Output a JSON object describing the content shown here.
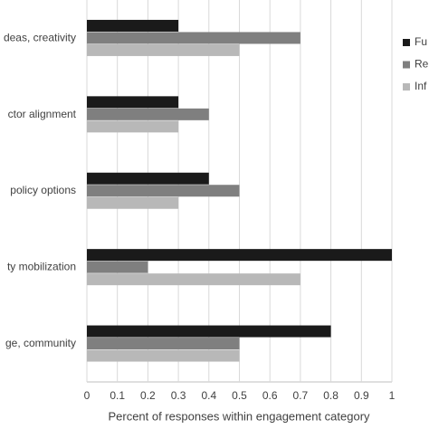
{
  "chart_data": {
    "type": "hbar",
    "categories": [
      "deas, creativity",
      "ctor alignment",
      "policy options",
      "ty mobilization",
      "ge, community"
    ],
    "series": [
      {
        "name": "Fu",
        "color": "#1a1a1a",
        "values": [
          0.3,
          0.3,
          0.4,
          1,
          0.8
        ]
      },
      {
        "name": "Re",
        "color": "#7f7f7f",
        "values": [
          0.7,
          0.4,
          0.5,
          0.2,
          0.5
        ]
      },
      {
        "name": "Inf",
        "color": "#b8b8b8",
        "values": [
          0.5,
          0.3,
          0.3,
          0.7,
          0.5
        ]
      }
    ],
    "x_label": "Percent of responses within engagement category",
    "xlim": [
      0,
      1
    ],
    "xticks": [
      0,
      0.1,
      0.2,
      0.3,
      0.4,
      0.5,
      0.6,
      0.7,
      0.8,
      0.9,
      1
    ],
    "grid": true
  }
}
